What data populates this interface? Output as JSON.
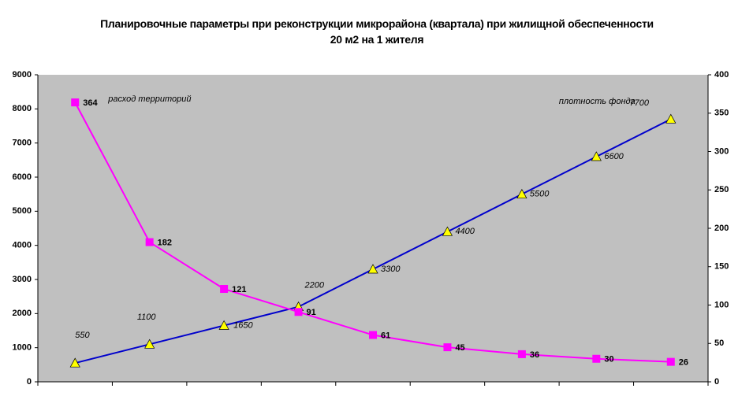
{
  "chart_data": {
    "type": "line",
    "title": "Планировочные параметры  при реконструкции микрорайона (квартала) при жилищной обеспеченности 20 м2 на 1 жителя",
    "categories": [
      null,
      null,
      null,
      null,
      null,
      null,
      null,
      null,
      null
    ],
    "series": [
      {
        "name": "плотность фонда",
        "color": "#0000cc",
        "marker_color": "#ffff00",
        "values": [
          550,
          1100,
          1650,
          2200,
          3300,
          4400,
          5500,
          6600,
          7700
        ]
      },
      {
        "name": "расход территорий",
        "color": "#ff00ff",
        "axis": "y2",
        "values": [
          364,
          182,
          121,
          91,
          61,
          45,
          36,
          30,
          26
        ]
      }
    ],
    "ylim": [
      0,
      9000
    ],
    "yticks": [
      0,
      1000,
      2000,
      3000,
      4000,
      5000,
      6000,
      7000,
      8000,
      9000
    ],
    "y2lim": [
      0,
      400
    ],
    "y2ticks": [
      0,
      50,
      100,
      150,
      200,
      250,
      300,
      350,
      400
    ]
  }
}
